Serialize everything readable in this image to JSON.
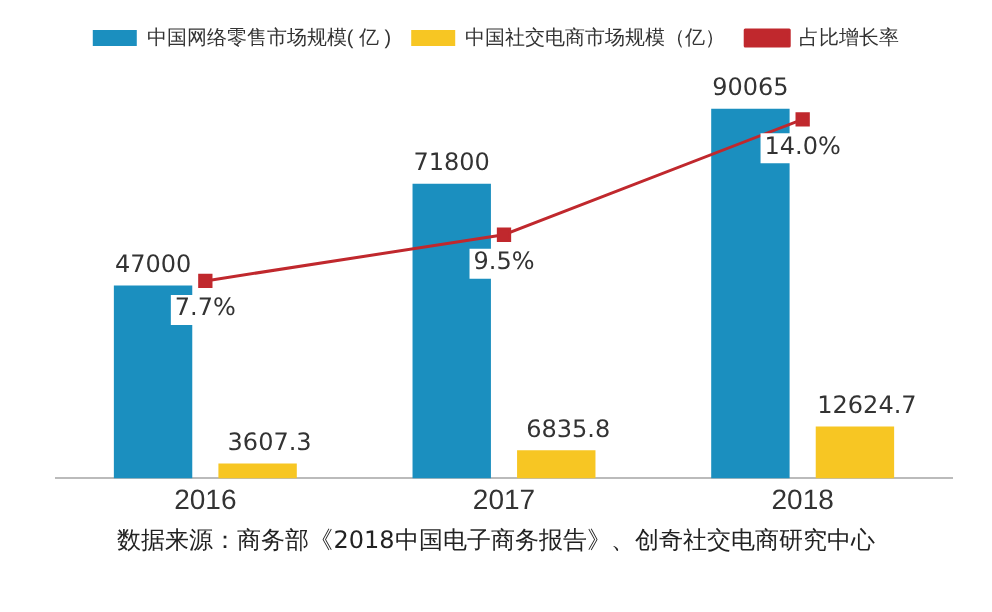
{
  "chart_data": {
    "type": "bar",
    "categories": [
      "2016",
      "2017",
      "2018"
    ],
    "series": [
      {
        "name": "中国网络零售市场规模( 亿 )",
        "color": "#1b8fbf",
        "values": [
          47000,
          71800,
          90065
        ]
      },
      {
        "name": "中国社交电商市场规模（亿）",
        "color": "#f7c623",
        "values": [
          3607.3,
          6835.8,
          12624.7
        ]
      },
      {
        "name": "占比增长率",
        "type": "line",
        "axis": "y2",
        "color": "#c0282d",
        "values": [
          7.7,
          9.5,
          14.0
        ],
        "value_labels": [
          "7.7%",
          "9.5%",
          "14.0%"
        ]
      }
    ],
    "tick_labels": "x",
    "data_labels": true,
    "legend": "top",
    "grid": false,
    "marker": "square",
    "annotations": [
      "数据来源：商务部《2018中国电子商务报告》、创奇社交电商研究中心"
    ]
  }
}
